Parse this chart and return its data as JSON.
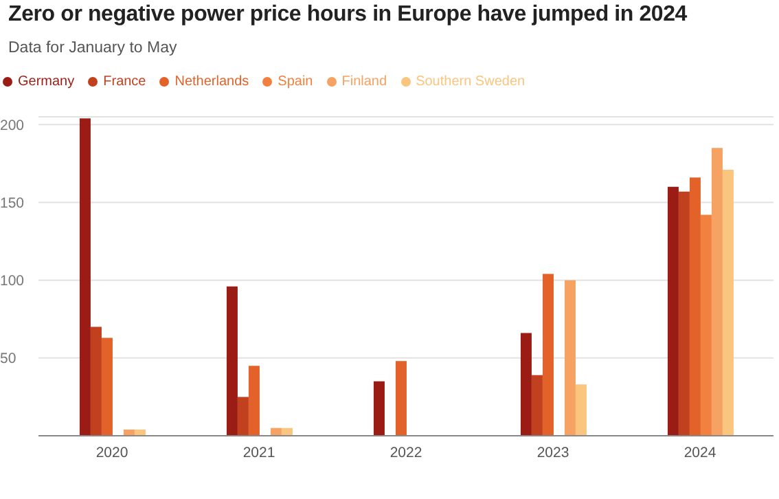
{
  "chart_data": {
    "type": "bar",
    "title": "Zero or negative power price hours in Europe have jumped in 2024",
    "subtitle": "Data for January to May",
    "categories": [
      "2020",
      "2021",
      "2022",
      "2023",
      "2024"
    ],
    "series": [
      {
        "name": "Germany",
        "color": "#9b1c14",
        "values": [
          204,
          96,
          35,
          66,
          160
        ]
      },
      {
        "name": "France",
        "color": "#c1401e",
        "values": [
          70,
          25,
          0,
          39,
          157
        ]
      },
      {
        "name": "Netherlands",
        "color": "#e2622a",
        "values": [
          63,
          45,
          48,
          104,
          166
        ]
      },
      {
        "name": "Spain",
        "color": "#f2803f",
        "values": [
          0,
          0,
          0,
          0,
          142
        ]
      },
      {
        "name": "Finland",
        "color": "#f6a263",
        "values": [
          4,
          5,
          0,
          100,
          185
        ]
      },
      {
        "name": "Southern Sweden",
        "color": "#f9c57f",
        "values": [
          4,
          5,
          0,
          33,
          171
        ]
      }
    ],
    "ylim": [
      0,
      205
    ],
    "yticks": [
      50,
      100,
      150,
      200
    ],
    "grid": "y",
    "legend": "top left"
  }
}
